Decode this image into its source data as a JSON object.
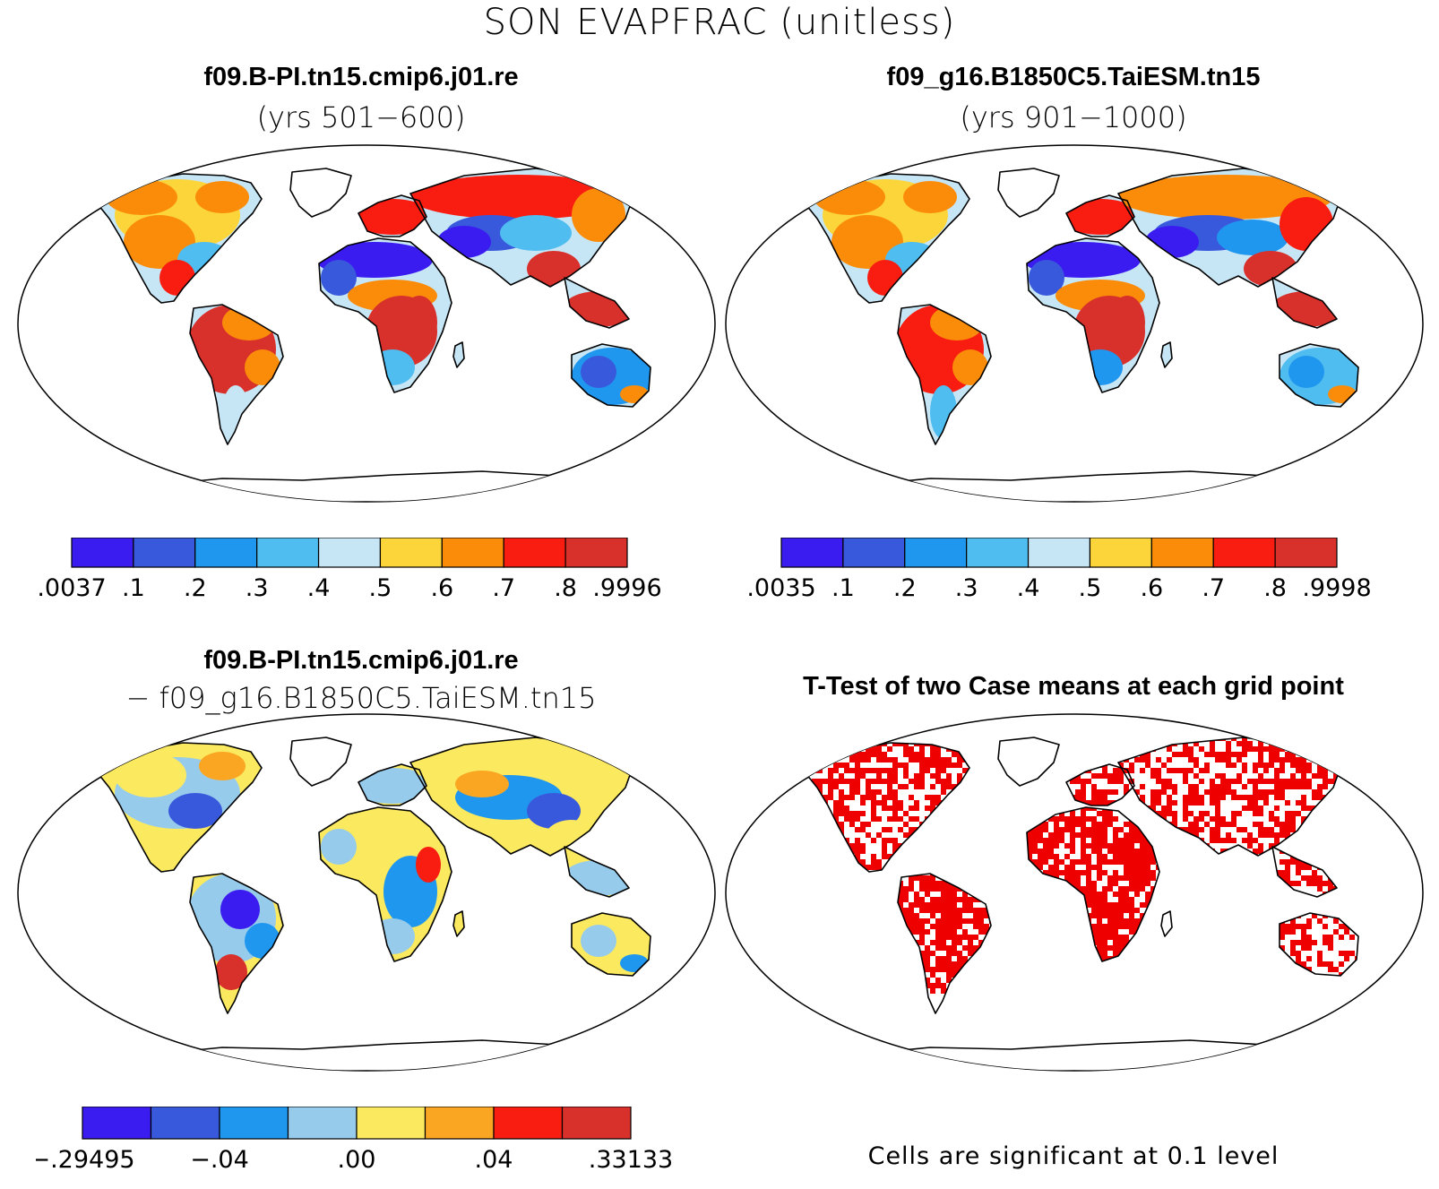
{
  "figure": {
    "title": "SON EVAPFRAC (unitless)"
  },
  "panels": [
    {
      "id": "case1",
      "title": "f09.B-PI.tn15.cmip6.j01.re",
      "subtitle": "(yrs 501−600)",
      "colorbar": {
        "colors": [
          "#3a1cf0",
          "#3959dc",
          "#1f97ef",
          "#4fbdf0",
          "#c6e6f6",
          "#fcd53a",
          "#fb8c0a",
          "#f81d10",
          "#d8302a"
        ],
        "labels": [
          ".0037",
          ".1",
          ".2",
          ".3",
          ".4",
          ".5",
          ".6",
          ".7",
          ".8",
          ".9996"
        ]
      }
    },
    {
      "id": "case2",
      "title": "f09_g16.B1850C5.TaiESM.tn15",
      "subtitle": "(yrs 901−1000)",
      "colorbar": {
        "colors": [
          "#3a1cf0",
          "#3959dc",
          "#1f97ef",
          "#4fbdf0",
          "#c6e6f6",
          "#fcd53a",
          "#fb8c0a",
          "#f81d10",
          "#d8302a"
        ],
        "labels": [
          ".0035",
          ".1",
          ".2",
          ".3",
          ".4",
          ".5",
          ".6",
          ".7",
          ".8",
          ".9998"
        ]
      }
    },
    {
      "id": "difference",
      "title": "f09.B-PI.tn15.cmip6.j01.re",
      "subtitle": "− f09_g16.B1850C5.TaiESM.tn15",
      "colorbar": {
        "colors": [
          "#3a1cf0",
          "#3959dc",
          "#1f97ef",
          "#97cbeb",
          "#fbe960",
          "#fba622",
          "#f81d10",
          "#d8302a"
        ],
        "labels": [
          "−.29495",
          "−.04",
          ".00",
          ".04",
          ".33133"
        ],
        "label_bounds": [
          0,
          2,
          4,
          6,
          8
        ]
      }
    },
    {
      "id": "ttest",
      "title": "T-Test of two Case means at each grid point",
      "note": "Cells are significant at 0.1 level",
      "fill_color": "#ee0000"
    }
  ],
  "map_style": {
    "ocean": "#ffffff",
    "coastline": "#000000"
  }
}
